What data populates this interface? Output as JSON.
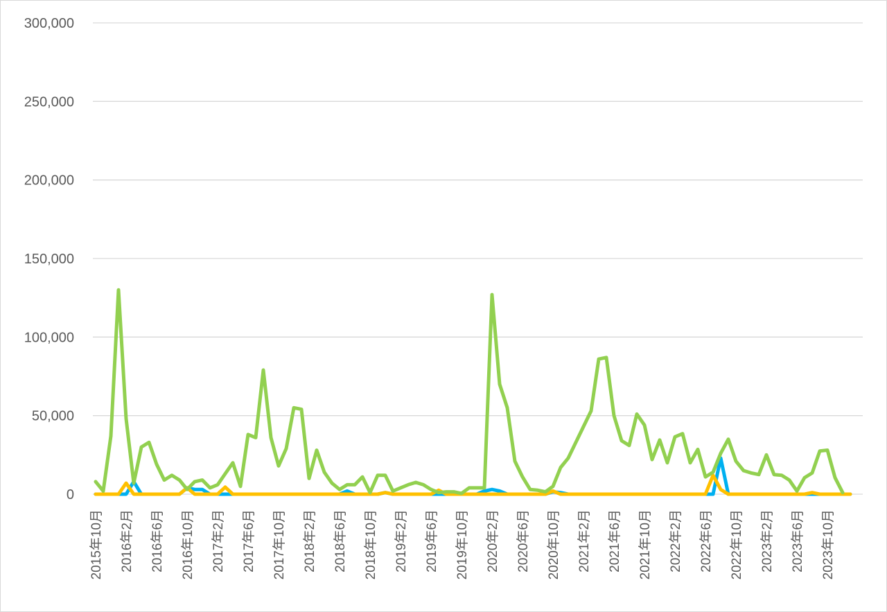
{
  "chart_data": {
    "type": "line",
    "title": "",
    "xlabel": "",
    "ylabel": "",
    "ylim": [
      0,
      300000
    ],
    "y_ticks": [
      "0",
      "50,000",
      "100,000",
      "150,000",
      "200,000",
      "250,000",
      "300,000"
    ],
    "y_tick_values": [
      0,
      50000,
      100000,
      150000,
      200000,
      250000,
      300000
    ],
    "grid": true,
    "legend": "none",
    "x_labels": [
      "2015年10月",
      "2016年2月",
      "2016年6月",
      "2016年10月",
      "2017年2月",
      "2017年6月",
      "2017年10月",
      "2018年2月",
      "2018年6月",
      "2018年10月",
      "2019年2月",
      "2019年6月",
      "2019年10月",
      "2020年2月",
      "2020年6月",
      "2020年10月",
      "2021年2月",
      "2021年6月",
      "2021年10月",
      "2022年2月",
      "2022年6月",
      "2022年10月",
      "2023年2月",
      "2023年6月",
      "2023年10月"
    ],
    "x_start": "2015-10",
    "x_step_months": 1,
    "series": [
      {
        "color": "#00b0f0",
        "values": [
          0,
          0,
          0,
          0,
          0,
          8000,
          0,
          0,
          0,
          0,
          0,
          0,
          4000,
          3000,
          3000,
          0,
          0,
          0,
          0,
          0,
          0,
          0,
          0,
          0,
          0,
          0,
          0,
          0,
          0,
          0,
          0,
          0,
          0,
          2000,
          0,
          0,
          0,
          0,
          1000,
          0,
          0,
          0,
          0,
          0,
          0,
          0,
          0,
          1000,
          0,
          0,
          0,
          2000,
          3000,
          2000,
          0,
          0,
          0,
          0,
          0,
          0,
          1500,
          1000,
          0,
          0,
          0,
          0,
          0,
          0,
          0,
          0,
          0,
          0,
          0,
          0,
          0,
          0,
          0,
          0,
          0,
          0,
          0,
          0,
          23000,
          0,
          0,
          0,
          0,
          0,
          0,
          0,
          0,
          0,
          0,
          0,
          0,
          0,
          0,
          0,
          0,
          0
        ]
      },
      {
        "color": "#ffc000",
        "values": [
          0,
          0,
          0,
          0,
          7000,
          0,
          0,
          0,
          0,
          0,
          0,
          0,
          4000,
          0,
          0,
          0,
          0,
          4500,
          0,
          0,
          0,
          0,
          0,
          0,
          0,
          0,
          0,
          0,
          0,
          0,
          0,
          0,
          0,
          0,
          0,
          0,
          0,
          0,
          1000,
          0,
          0,
          0,
          0,
          0,
          0,
          2500,
          0,
          0,
          0,
          0,
          0,
          0,
          0,
          0,
          0,
          0,
          0,
          0,
          0,
          0,
          2000,
          0,
          0,
          0,
          0,
          0,
          0,
          0,
          0,
          0,
          0,
          0,
          0,
          0,
          0,
          0,
          0,
          0,
          0,
          0,
          0,
          12000,
          3000,
          0,
          0,
          0,
          0,
          0,
          0,
          0,
          0,
          0,
          0,
          0,
          1000,
          0,
          0,
          0,
          0,
          0
        ]
      },
      {
        "color": "#92d050",
        "values": [
          8000,
          2000,
          37000,
          130000,
          48000,
          7000,
          30000,
          33000,
          19000,
          9000,
          12000,
          9000,
          3000,
          8000,
          9000,
          4000,
          6000,
          13000,
          20000,
          5000,
          38000,
          36000,
          79000,
          36000,
          18000,
          29000,
          55000,
          54000,
          10000,
          28000,
          14000,
          7000,
          3000,
          6000,
          6000,
          11000,
          1000,
          12000,
          12000,
          2000,
          4000,
          6000,
          7500,
          6000,
          3000,
          1000,
          1500,
          1500,
          500,
          4000,
          4000,
          4000,
          127000,
          70000,
          55000,
          21000,
          11000,
          3000,
          2500,
          1500,
          5000,
          17000,
          23000,
          33000,
          43000,
          53000,
          86000,
          87000,
          50000,
          34000,
          31000,
          51000,
          44000,
          22000,
          34500,
          20000,
          36500,
          38500,
          20000,
          28500,
          11000,
          14000,
          26000,
          35000,
          21000,
          15000,
          13500,
          12500,
          25000,
          12500,
          12000,
          9000,
          2000,
          10500,
          13500,
          27500,
          28000,
          10500,
          1000
        ]
      }
    ]
  }
}
